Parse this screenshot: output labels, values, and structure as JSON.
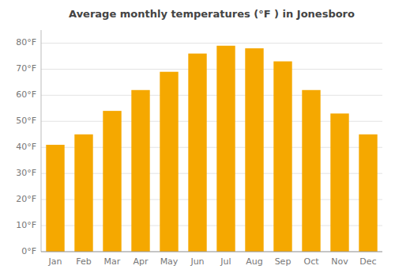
{
  "chart_data": {
    "type": "bar",
    "title": "Average monthly temperatures (°F ) in Jonesboro",
    "categories": [
      "Jan",
      "Feb",
      "Mar",
      "Apr",
      "May",
      "Jun",
      "Jul",
      "Aug",
      "Sep",
      "Oct",
      "Nov",
      "Dec"
    ],
    "values": [
      41,
      45,
      54,
      62,
      69,
      76,
      79,
      78,
      73,
      62,
      53,
      45
    ],
    "color": "#F5A800",
    "ylim": [
      0,
      85
    ],
    "yticks": [
      {
        "value": 0,
        "label": "0°F"
      },
      {
        "value": 10,
        "label": "10°F"
      },
      {
        "value": 20,
        "label": "20°F"
      },
      {
        "value": 30,
        "label": "30°F"
      },
      {
        "value": 40,
        "label": "40°F"
      },
      {
        "value": 50,
        "label": "50°F"
      },
      {
        "value": 60,
        "label": "60°F"
      },
      {
        "value": 70,
        "label": "70°F"
      },
      {
        "value": 80,
        "label": "80°F"
      }
    ],
    "grid": true
  }
}
